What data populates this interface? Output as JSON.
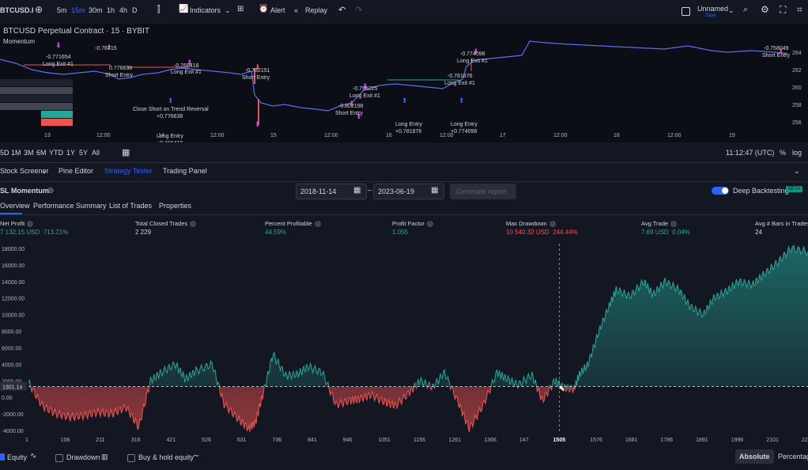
{
  "toolbar": {
    "symbol": "BTCUSD.I",
    "intervals": [
      "5m",
      "15m",
      "30m",
      "1h",
      "4h",
      "D"
    ],
    "active_interval": "15m",
    "indicators_label": "Indicators",
    "alert_label": "Alert",
    "replay_label": "Replay",
    "layout_name": "Unnamed",
    "layout_status": "Save"
  },
  "top_chart": {
    "title": "BTCUSD Perpetual Contract · 15 · BYBIT",
    "indicator_name": "Momentum",
    "x_labels": [
      "13",
      "12:00",
      "14",
      "12:00",
      "15",
      "12:00",
      "16",
      "12:00",
      "17",
      "12:00",
      "18",
      "12:00",
      "19",
      "12:00"
    ],
    "y_labels": [
      "264",
      "262",
      "260",
      "258",
      "256"
    ],
    "annotations": [
      {
        "text": "-0.76715",
        "x": 120,
        "y": 33
      },
      {
        "text": "-0.771654",
        "x": 58,
        "y": 44
      },
      {
        "text": "Long Exit #1",
        "x": 54,
        "y": 53
      },
      {
        "text": "0.776638",
        "x": 138,
        "y": 58
      },
      {
        "text": "Short Entry",
        "x": 133,
        "y": 67
      },
      {
        "text": "-0.768418",
        "x": 220,
        "y": 55
      },
      {
        "text": "Long Exit #1",
        "x": 216,
        "y": 63
      },
      {
        "text": "-0.782151",
        "x": 310,
        "y": 61
      },
      {
        "text": "Short Entry",
        "x": 306,
        "y": 70
      },
      {
        "text": "-0.774098",
        "x": 582,
        "y": 40
      },
      {
        "text": "Long Exit #1",
        "x": 578,
        "y": 49
      },
      {
        "text": "-0.781876",
        "x": 566,
        "y": 68
      },
      {
        "text": "Long Exit #1",
        "x": 562,
        "y": 77
      },
      {
        "text": "-0.758049",
        "x": 966,
        "y": 33
      },
      {
        "text": "Short Entry",
        "x": 964,
        "y": 42
      },
      {
        "text": "-0.796225",
        "x": 446,
        "y": 84
      },
      {
        "text": "Long Exit #1",
        "x": 442,
        "y": 93
      },
      {
        "text": "-0.802198",
        "x": 428,
        "y": 106
      },
      {
        "text": "Short Entry",
        "x": 424,
        "y": 115
      },
      {
        "text": "Close Short on Trend Reversal",
        "x": 168,
        "y": 110
      },
      {
        "text": "+0.776638",
        "x": 198,
        "y": 119
      },
      {
        "text": "Long Entry",
        "x": 198,
        "y": 144
      },
      {
        "text": "+0.768418",
        "x": 198,
        "y": 153
      },
      {
        "text": "Long Entry",
        "x": 500,
        "y": 129
      },
      {
        "text": "+0.781876",
        "x": 500,
        "y": 138
      },
      {
        "text": "Long Entry",
        "x": 570,
        "y": 129
      },
      {
        "text": "+0.774098",
        "x": 570,
        "y": 138
      },
      {
        "text": "Short Exit #1",
        "x": 434,
        "y": 157
      },
      {
        "text": "Short Exit #1",
        "x": 306,
        "y": 160
      }
    ]
  },
  "period_bar": {
    "ranges": [
      "5D",
      "1M",
      "3M",
      "6M",
      "YTD",
      "1Y",
      "5Y",
      "All"
    ],
    "time": "11:12:47 (UTC)",
    "percent": "%",
    "log": "log"
  },
  "panel_tabs": [
    "Stock Screener",
    "Pine Editor",
    "Strategy Tester",
    "Trading Panel"
  ],
  "active_panel_tab": "Strategy Tester",
  "strategy": {
    "name": "SL Momentum",
    "date_from": "2018-11-14",
    "date_to": "2023-06-19",
    "generate_label": "Generate report",
    "deep_backtesting_label": "Deep Backtesting",
    "beta_label": "BETA"
  },
  "sub_tabs": [
    "Overview",
    "Performance Summary",
    "List of Trades",
    "Properties"
  ],
  "metrics": [
    {
      "label": "Net Profit",
      "value": "7 132.15 USD",
      "sub": "713.21%",
      "color": "#26a69a"
    },
    {
      "label": "Total Closed Trades",
      "value": "2 229",
      "sub": "",
      "color": "#d1d4dc"
    },
    {
      "label": "Percent Profitable",
      "value": "44.59%",
      "sub": "",
      "color": "#26a69a"
    },
    {
      "label": "Profit Factor",
      "value": "1.055",
      "sub": "",
      "color": "#26a69a"
    },
    {
      "label": "Max Drawdown",
      "value": "10 540.32 USD",
      "sub": "244.44%",
      "color": "#ef5350"
    },
    {
      "label": "Avg Trade",
      "value": "7.69 USD",
      "sub": "0.04%",
      "color": "#26a69a"
    },
    {
      "label": "Avg # Bars in Trades",
      "value": "24",
      "sub": "",
      "color": "#d1d4dc"
    }
  ],
  "chart_data": {
    "type": "area",
    "title": "",
    "xlabel": "",
    "ylabel": "",
    "y_ticks": [
      "18000.00",
      "16000.00",
      "14000.00",
      "12000.00",
      "10000.00",
      "8000.00",
      "6000.00",
      "4000.00",
      "2000.00",
      "0.00",
      "-2000.00",
      "-4000.00"
    ],
    "x_ticks": [
      "1",
      "106",
      "211",
      "316",
      "421",
      "526",
      "631",
      "736",
      "841",
      "946",
      "1051",
      "1156",
      "1261",
      "1366",
      "147",
      "1505",
      "1576",
      "1681",
      "1786",
      "1891",
      "1996",
      "2101",
      "220"
    ],
    "ylim": [
      -4000,
      18000
    ],
    "baseline": 1301.14,
    "baseline_label": "1301.14",
    "crosshair_x": "1505",
    "series": [
      {
        "x": [
          1,
          40,
          80,
          120,
          160,
          200,
          240,
          280,
          316,
          350,
          380,
          421,
          450,
          480,
          526,
          560,
          600,
          631,
          650,
          670,
          700,
          736,
          770,
          800,
          841,
          880,
          920,
          946,
          980,
          1020,
          1051,
          1090,
          1120,
          1156,
          1190,
          1230,
          1261,
          1300,
          1340,
          1366,
          1400,
          1440,
          1470,
          1505,
          1530,
          1560,
          1576,
          1600,
          1630,
          1660,
          1681,
          1720,
          1760,
          1786,
          1820,
          1860,
          1891,
          1930,
          1960,
          1996,
          2030,
          2070,
          2101,
          2140,
          2180,
          2229
        ],
        "values": [
          1800,
          -1000,
          -2000,
          -2400,
          -2200,
          -1800,
          -2000,
          -1200,
          -3600,
          2000,
          3000,
          4000,
          2200,
          3200,
          4000,
          -800,
          -2600,
          -3800,
          -3000,
          200,
          5200,
          2600,
          2800,
          3700,
          3000,
          -900,
          -400,
          -200,
          300,
          -600,
          -1000,
          600,
          2000,
          1200,
          3000,
          -700,
          -3800,
          -1000,
          3000,
          2300,
          1500,
          2700,
          -400,
          2000,
          1200,
          1000,
          2800,
          4000,
          7800,
          11000,
          13000,
          12200,
          14000,
          12400,
          14000,
          13000,
          11000,
          10000,
          12000,
          12800,
          14000,
          13600,
          14800,
          16200,
          18000,
          17600
        ]
      }
    ]
  },
  "bottom": {
    "equity_label": "Equity",
    "drawdown_label": "Drawdown",
    "buyhold_label": "Buy & hold equity",
    "absolute_label": "Absolute",
    "percentage_label": "Percentage"
  },
  "colors": {
    "profit": "#26a69a",
    "loss": "#ef5350",
    "accent": "#2962ff",
    "price": "#5b6cf5"
  }
}
